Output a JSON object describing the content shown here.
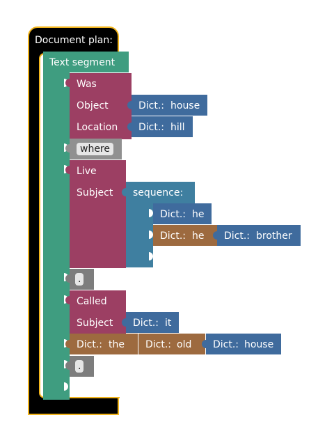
{
  "document_plan": {
    "label": "Document plan:",
    "text_segment": {
      "label": "Text segment",
      "blocks": {
        "was": {
          "label": "Was",
          "object_label": "Object",
          "object_value": {
            "prefix": "Dict.:",
            "word": "house"
          },
          "location_label": "Location",
          "location_value": {
            "prefix": "Dict.:",
            "word": "hill"
          }
        },
        "where_chip": "where",
        "live": {
          "label": "Live",
          "subject_label": "Subject",
          "sequence": {
            "label": "sequence:",
            "item1": {
              "prefix": "Dict.:",
              "word": "he"
            },
            "item2_left": {
              "prefix": "Dict.:",
              "word": "he"
            },
            "item2_right": {
              "prefix": "Dict.:",
              "word": "brother"
            }
          }
        },
        "period1": ".",
        "called": {
          "label": "Called",
          "subject_label": "Subject",
          "subject_value": {
            "prefix": "Dict.:",
            "word": "it"
          }
        },
        "phrase": {
          "w1": {
            "prefix": "Dict.:",
            "word": "the"
          },
          "w2": {
            "prefix": "Dict.:",
            "word": "old"
          },
          "w3": {
            "prefix": "Dict.:",
            "word": "house"
          }
        },
        "period2": "."
      }
    }
  },
  "colors": {
    "document_plan": "#000000",
    "document_plan_border": "#f2b51c",
    "text_segment": "#3f9d80",
    "verb_block": "#9c3f63",
    "dict_blue": "#3f6b9d",
    "sequence": "#3f7fa0",
    "dict_brown": "#9d6a3f",
    "punct": "#909090"
  }
}
